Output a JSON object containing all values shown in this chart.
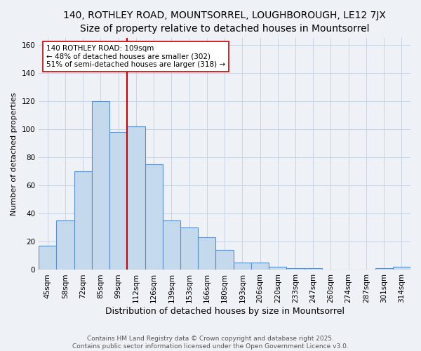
{
  "title1": "140, ROTHLEY ROAD, MOUNTSORREL, LOUGHBOROUGH, LE12 7JX",
  "title2": "Size of property relative to detached houses in Mountsorrel",
  "xlabel": "Distribution of detached houses by size in Mountsorrel",
  "ylabel": "Number of detached properties",
  "categories": [
    "45sqm",
    "58sqm",
    "72sqm",
    "85sqm",
    "99sqm",
    "112sqm",
    "126sqm",
    "139sqm",
    "153sqm",
    "166sqm",
    "180sqm",
    "193sqm",
    "206sqm",
    "220sqm",
    "233sqm",
    "247sqm",
    "260sqm",
    "274sqm",
    "287sqm",
    "301sqm",
    "314sqm"
  ],
  "values": [
    17,
    35,
    70,
    120,
    98,
    102,
    75,
    35,
    30,
    23,
    14,
    5,
    5,
    2,
    1,
    1,
    0,
    0,
    0,
    1,
    2
  ],
  "bar_color": "#c5d9ed",
  "bar_edge_color": "#5b8fc9",
  "vline_x_index": 5,
  "vline_color": "#cc0000",
  "annotation_text": "140 ROTHLEY ROAD: 109sqm\n← 48% of detached houses are smaller (302)\n51% of semi-detached houses are larger (318) →",
  "annotation_box_color": "#ffffff",
  "annotation_box_edge": "#cc0000",
  "ylim": [
    0,
    165
  ],
  "yticks": [
    0,
    20,
    40,
    60,
    80,
    100,
    120,
    140,
    160
  ],
  "background_color": "#eef2f7",
  "grid_color": "#c8d4e0",
  "footer1": "Contains HM Land Registry data © Crown copyright and database right 2025.",
  "footer2": "Contains public sector information licensed under the Open Government Licence v3.0.",
  "title1_fontsize": 10,
  "title2_fontsize": 9,
  "xlabel_fontsize": 9,
  "ylabel_fontsize": 8,
  "tick_fontsize": 7.5,
  "annotation_fontsize": 7.5,
  "footer_fontsize": 6.5
}
